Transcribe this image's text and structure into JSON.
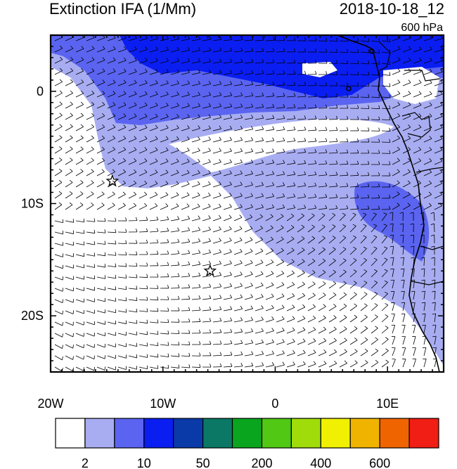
{
  "header": {
    "title": "Extinction IFA (1/Mm)",
    "timestamp": "2018-10-18_12",
    "level": "600 hPa"
  },
  "axes": {
    "lon_range": [
      -20,
      15
    ],
    "lat_range": [
      -25,
      5
    ],
    "x_ticks": [
      {
        "value": -20,
        "label": "20W"
      },
      {
        "value": -10,
        "label": "10W"
      },
      {
        "value": 0,
        "label": "0"
      },
      {
        "value": 10,
        "label": "10E"
      }
    ],
    "y_ticks": [
      {
        "value": 0,
        "label": "0"
      },
      {
        "value": -10,
        "label": "10S"
      },
      {
        "value": -20,
        "label": "20S"
      }
    ]
  },
  "colorbar": {
    "colors": [
      "#ffffff",
      "#a8adf2",
      "#5a64f0",
      "#0a1ef2",
      "#0a3aa8",
      "#0a7864",
      "#0aa51e",
      "#50c814",
      "#a0dc0a",
      "#f0f000",
      "#f0b400",
      "#f06400",
      "#f01e14"
    ],
    "tick_labels": [
      {
        "after_box": 1,
        "label": "2"
      },
      {
        "after_box": 3,
        "label": "10"
      },
      {
        "after_box": 5,
        "label": "50"
      },
      {
        "after_box": 7,
        "label": "200"
      },
      {
        "after_box": 9,
        "label": "400"
      },
      {
        "after_box": 11,
        "label": "600"
      }
    ]
  },
  "markers": [
    {
      "name": "star-marker-1",
      "lon": -14.5,
      "lat": -8.0
    },
    {
      "name": "star-marker-2",
      "lon": -5.8,
      "lat": -16.0
    }
  ]
}
